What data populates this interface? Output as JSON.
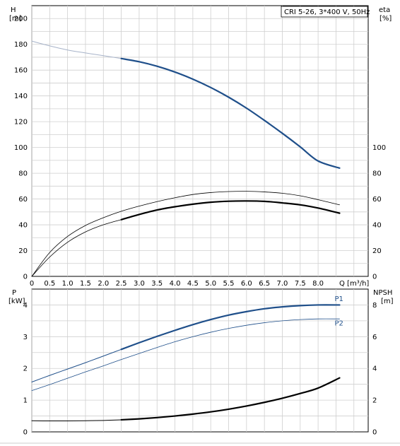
{
  "chart_data": [
    {
      "type": "line",
      "panel": "top",
      "annotation": "CRI 5-26, 3*400 V, 50Hz",
      "xlabel": "Q [m³/h]",
      "ylabel": "H",
      "ylabel_unit": "[m]",
      "y2label": "eta",
      "y2label_unit": "[%]",
      "xlim": [
        0,
        9.4
      ],
      "ylim": [
        0,
        210
      ],
      "y2lim": [
        0,
        210
      ],
      "x_ticks": [
        "0",
        "0.5",
        "1.0",
        "1.5",
        "2.0",
        "2.5",
        "3.0",
        "3.5",
        "4.0",
        "4.5",
        "5.0",
        "5.5",
        "6.0",
        "6.5",
        "7.0",
        "7.5",
        "8.0"
      ],
      "x_tick_values": [
        0,
        0.5,
        1.0,
        1.5,
        2.0,
        2.5,
        3.0,
        3.5,
        4.0,
        4.5,
        5.0,
        5.5,
        6.0,
        6.5,
        7.0,
        7.5,
        8.0
      ],
      "y_ticks": [
        "0",
        "20",
        "40",
        "60",
        "80",
        "100",
        "120",
        "140",
        "160",
        "180",
        "200"
      ],
      "y_tick_values": [
        0,
        20,
        40,
        60,
        80,
        100,
        120,
        140,
        160,
        180,
        200
      ],
      "y2_ticks": [
        "0",
        "20",
        "40",
        "60",
        "80",
        "100"
      ],
      "y2_tick_values": [
        0,
        20,
        40,
        60,
        80,
        100
      ],
      "grid": true,
      "series": [
        {
          "color": "#a7b3c9",
          "width": 1.0,
          "x": [
            0,
            0.5,
            1.0,
            1.5,
            2.0,
            2.5
          ],
          "y": [
            182.5,
            178.8,
            175.6,
            173.3,
            171.2,
            169.0
          ]
        },
        {
          "color": "#1f4f8a",
          "width": 2.2,
          "x": [
            2.5,
            3.0,
            3.5,
            4.0,
            4.5,
            5.0,
            5.5,
            6.0,
            6.5,
            7.0,
            7.5,
            8.0,
            8.6
          ],
          "y": [
            169.0,
            166.5,
            163.0,
            158.5,
            153.0,
            146.5,
            139.0,
            130.5,
            121.0,
            111.0,
            100.5,
            89.5,
            84.0
          ]
        },
        {
          "color": "#000000",
          "width": 0.8,
          "x": [
            0,
            0.5,
            1.0,
            1.5,
            2.0,
            2.5,
            3.0,
            3.5,
            4.0,
            4.5,
            5.0,
            5.5,
            6.0,
            6.5,
            7.0,
            7.5,
            8.0,
            8.6
          ],
          "y": [
            0,
            18.5,
            31.0,
            39.5,
            45.5,
            50.5,
            54.5,
            58.0,
            61.0,
            63.5,
            65.0,
            65.8,
            66.0,
            65.5,
            64.5,
            62.5,
            59.5,
            55.5
          ]
        },
        {
          "color": "#000000",
          "width": 0.8,
          "x": [
            0,
            0.5,
            1.0,
            1.5,
            2.0,
            2.5
          ],
          "y": [
            0,
            15.0,
            26.5,
            34.5,
            40.0,
            44.0
          ]
        },
        {
          "color": "#000000",
          "width": 2.2,
          "x": [
            2.5,
            3.0,
            3.5,
            4.0,
            4.5,
            5.0,
            5.5,
            6.0,
            6.5,
            7.0,
            7.5,
            8.0,
            8.6
          ],
          "y": [
            44.0,
            48.0,
            51.5,
            54.0,
            56.0,
            57.5,
            58.3,
            58.5,
            58.2,
            57.0,
            55.5,
            53.0,
            49.0
          ]
        }
      ]
    },
    {
      "type": "line",
      "panel": "bottom",
      "ylabel": "P",
      "ylabel_unit": "[kW]",
      "y2label": "NPSH",
      "y2label_unit": "[m]",
      "xlim": [
        0,
        9.4
      ],
      "ylim": [
        0,
        4.5
      ],
      "y2lim": [
        0,
        9
      ],
      "y_ticks": [
        "0",
        "1",
        "2",
        "3",
        "4"
      ],
      "y_tick_values": [
        0,
        1,
        2,
        3,
        4
      ],
      "y2_ticks": [
        "0",
        "2",
        "4",
        "6",
        "8"
      ],
      "y2_tick_values": [
        0,
        2,
        4,
        6,
        8
      ],
      "grid": true,
      "series": [
        {
          "name": "P1",
          "color": "#1f4f8a",
          "width": 1.0,
          "x": [
            0,
            0.5,
            1.0,
            1.5,
            2.0,
            2.5
          ],
          "y": [
            1.57,
            1.78,
            1.98,
            2.18,
            2.39,
            2.6
          ]
        },
        {
          "name": "P1",
          "color": "#1f4f8a",
          "width": 2.2,
          "x": [
            2.5,
            3.0,
            3.5,
            4.0,
            4.5,
            5.0,
            5.5,
            6.0,
            6.5,
            7.0,
            7.5,
            8.0,
            8.6
          ],
          "y": [
            2.6,
            2.81,
            3.01,
            3.2,
            3.38,
            3.54,
            3.68,
            3.79,
            3.88,
            3.94,
            3.98,
            4.0,
            4.0
          ]
        },
        {
          "name": "P2",
          "color": "#1f4f8a",
          "width": 0.8,
          "x": [
            0,
            0.5,
            1.0,
            1.5,
            2.0,
            2.5,
            3.0,
            3.5,
            4.0,
            4.5,
            5.0,
            5.5,
            6.0,
            6.5,
            7.0,
            7.5,
            8.0,
            8.6
          ],
          "y": [
            1.3,
            1.49,
            1.69,
            1.89,
            2.08,
            2.28,
            2.47,
            2.66,
            2.84,
            3.0,
            3.14,
            3.26,
            3.36,
            3.44,
            3.5,
            3.54,
            3.56,
            3.56
          ]
        },
        {
          "color": "#000000",
          "width": 1.0,
          "axis": "right",
          "x": [
            0,
            0.5,
            1.0,
            1.5,
            2.0,
            2.5
          ],
          "y": [
            0.7,
            0.69,
            0.69,
            0.7,
            0.72,
            0.76
          ]
        },
        {
          "color": "#000000",
          "width": 2.2,
          "axis": "right",
          "x": [
            2.5,
            3.0,
            3.5,
            4.0,
            4.5,
            5.0,
            5.5,
            6.0,
            6.5,
            7.0,
            7.5,
            8.0,
            8.6
          ],
          "y": [
            0.76,
            0.82,
            0.9,
            1.0,
            1.12,
            1.26,
            1.43,
            1.63,
            1.86,
            2.12,
            2.42,
            2.76,
            3.4
          ]
        }
      ],
      "curve_labels": [
        {
          "text": "P1",
          "x": 8.6,
          "y": 4.12,
          "axis": "left"
        },
        {
          "text": "P2",
          "x": 8.6,
          "y": 3.35,
          "axis": "left"
        }
      ]
    }
  ]
}
